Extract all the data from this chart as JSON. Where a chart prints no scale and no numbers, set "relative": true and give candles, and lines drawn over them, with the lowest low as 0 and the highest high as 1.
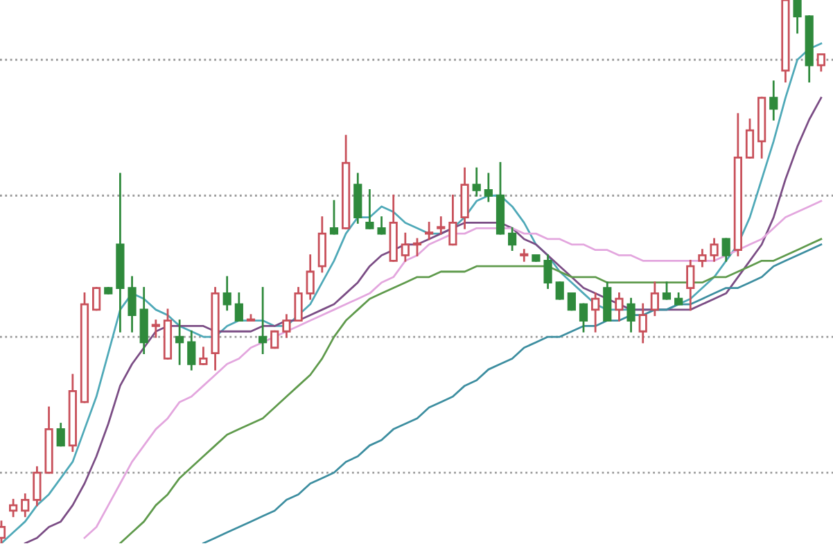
{
  "chart_data": {
    "type": "candlestick",
    "relative": true,
    "categories": [
      null,
      null,
      null,
      null,
      null,
      null,
      null,
      null,
      null,
      null,
      null,
      null,
      null,
      null,
      null,
      null,
      null,
      null,
      null,
      null,
      null,
      null,
      null,
      null,
      null,
      null,
      null,
      null,
      null,
      null,
      null,
      null,
      null,
      null,
      null,
      null,
      null,
      null,
      null,
      null,
      null,
      null,
      null,
      null,
      null,
      null,
      null,
      null,
      null,
      null,
      null,
      null,
      null,
      null,
      null,
      null,
      null,
      null,
      null,
      null,
      null,
      null,
      null,
      null,
      null,
      null,
      null,
      null,
      null,
      null
    ],
    "ohlc": [
      [
        0.01,
        0.04,
        0,
        0.03
      ],
      [
        0.06,
        0.08,
        0.05,
        0.07
      ],
      [
        0.06,
        0.09,
        0.05,
        0.08
      ],
      [
        0.08,
        0.14,
        0.07,
        0.13
      ],
      [
        0.13,
        0.25,
        0.13,
        0.21
      ],
      [
        0.21,
        0.22,
        0.18,
        0.18
      ],
      [
        0.18,
        0.31,
        0.17,
        0.28
      ],
      [
        0.26,
        0.46,
        0.26,
        0.44
      ],
      [
        0.43,
        0.47,
        0.43,
        0.47
      ],
      [
        0.47,
        0.47,
        0.46,
        0.46
      ],
      [
        0.55,
        0.68,
        0.39,
        0.47
      ],
      [
        0.47,
        0.49,
        0.39,
        0.42
      ],
      [
        0.43,
        0.47,
        0.35,
        0.37
      ],
      [
        0.4,
        0.41,
        0.38,
        0.4
      ],
      [
        0.34,
        0.43,
        0.34,
        0.41
      ],
      [
        0.38,
        0.41,
        0.33,
        0.37
      ],
      [
        0.37,
        0.39,
        0.32,
        0.33
      ],
      [
        0.33,
        0.36,
        0.33,
        0.34
      ],
      [
        0.35,
        0.47,
        0.32,
        0.46
      ],
      [
        0.46,
        0.49,
        0.43,
        0.44
      ],
      [
        0.44,
        0.46,
        0.41,
        0.41
      ],
      [
        0.41,
        0.42,
        0.41,
        0.41
      ],
      [
        0.38,
        0.47,
        0.35,
        0.37
      ],
      [
        0.36,
        0.39,
        0.36,
        0.39
      ],
      [
        0.39,
        0.42,
        0.38,
        0.41
      ],
      [
        0.41,
        0.47,
        0.41,
        0.46
      ],
      [
        0.46,
        0.53,
        0.45,
        0.5
      ],
      [
        0.51,
        0.6,
        0.5,
        0.57
      ],
      [
        0.58,
        0.63,
        0.57,
        0.57
      ],
      [
        0.58,
        0.75,
        0.58,
        0.7
      ],
      [
        0.66,
        0.68,
        0.59,
        0.6
      ],
      [
        0.59,
        0.65,
        0.58,
        0.58
      ],
      [
        0.58,
        0.6,
        0.57,
        0.57
      ],
      [
        0.52,
        0.64,
        0.52,
        0.59
      ],
      [
        0.53,
        0.57,
        0.52,
        0.55
      ],
      [
        0.55,
        0.56,
        0.53,
        0.55
      ],
      [
        0.57,
        0.59,
        0.56,
        0.57
      ],
      [
        0.58,
        0.6,
        0.57,
        0.58
      ],
      [
        0.55,
        0.64,
        0.55,
        0.59
      ],
      [
        0.6,
        0.69,
        0.58,
        0.66
      ],
      [
        0.66,
        0.69,
        0.64,
        0.65
      ],
      [
        0.65,
        0.68,
        0.63,
        0.64
      ],
      [
        0.64,
        0.7,
        0.57,
        0.57
      ],
      [
        0.57,
        0.58,
        0.54,
        0.55
      ],
      [
        0.53,
        0.54,
        0.52,
        0.53
      ],
      [
        0.53,
        0.53,
        0.52,
        0.52
      ],
      [
        0.52,
        0.53,
        0.47,
        0.48
      ],
      [
        0.48,
        0.48,
        0.45,
        0.45
      ],
      [
        0.46,
        0.46,
        0.43,
        0.43
      ],
      [
        0.44,
        0.44,
        0.39,
        0.41
      ],
      [
        0.43,
        0.46,
        0.39,
        0.45
      ],
      [
        0.47,
        0.48,
        0.41,
        0.41
      ],
      [
        0.43,
        0.46,
        0.41,
        0.45
      ],
      [
        0.44,
        0.45,
        0.39,
        0.41
      ],
      [
        0.39,
        0.44,
        0.37,
        0.42
      ],
      [
        0.43,
        0.48,
        0.42,
        0.46
      ],
      [
        0.46,
        0.48,
        0.45,
        0.45
      ],
      [
        0.45,
        0.46,
        0.44,
        0.44
      ],
      [
        0.47,
        0.52,
        0.43,
        0.51
      ],
      [
        0.52,
        0.54,
        0.51,
        0.53
      ],
      [
        0.53,
        0.56,
        0.52,
        0.55
      ],
      [
        0.56,
        0.56,
        0.52,
        0.53
      ],
      [
        0.54,
        0.79,
        0.53,
        0.71
      ],
      [
        0.71,
        0.78,
        0.71,
        0.76
      ],
      [
        0.74,
        0.82,
        0.71,
        0.82
      ],
      [
        0.82,
        0.85,
        0.78,
        0.8
      ],
      [
        0.87,
        1,
        0.85,
        1
      ],
      [
        1,
        1,
        0.94,
        0.97
      ],
      [
        0.97,
        0.97,
        0.85,
        0.88
      ],
      [
        0.88,
        0.9,
        0.87,
        0.9
      ]
    ],
    "series": [
      {
        "type": "line",
        "color": "#4fa9b8",
        "values": [
          0,
          0.02,
          0.04,
          0.07,
          0.09,
          0.12,
          0.15,
          0.21,
          0.27,
          0.35,
          0.43,
          0.46,
          0.45,
          0.43,
          0.42,
          0.4,
          0.39,
          0.38,
          0.38,
          0.4,
          0.41,
          0.41,
          0.41,
          0.4,
          0.4,
          0.42,
          0.44,
          0.48,
          0.52,
          0.57,
          0.6,
          0.6,
          0.62,
          0.61,
          0.59,
          0.58,
          0.57,
          0.57,
          0.58,
          0.6,
          0.63,
          0.64,
          0.64,
          0.62,
          0.59,
          0.55,
          0.53,
          0.5,
          0.48,
          0.46,
          0.44,
          0.43,
          0.43,
          0.43,
          0.43,
          0.43,
          0.43,
          0.44,
          0.45,
          0.47,
          0.49,
          0.52,
          0.55,
          0.6,
          0.67,
          0.74,
          0.82,
          0.89,
          0.91,
          0.92
        ]
      },
      {
        "type": "line",
        "color": "#7b4d85",
        "values": [
          null,
          null,
          0,
          0.01,
          0.03,
          0.04,
          0.07,
          0.11,
          0.16,
          0.22,
          0.29,
          0.33,
          0.36,
          0.39,
          0.4,
          0.4,
          0.4,
          0.4,
          0.39,
          0.39,
          0.39,
          0.39,
          0.4,
          0.4,
          0.41,
          0.41,
          0.42,
          0.43,
          0.44,
          0.46,
          0.48,
          0.51,
          0.53,
          0.54,
          0.55,
          0.55,
          0.56,
          0.57,
          0.58,
          0.59,
          0.59,
          0.59,
          0.59,
          0.58,
          0.56,
          0.55,
          0.53,
          0.51,
          0.49,
          0.47,
          0.46,
          0.45,
          0.44,
          0.43,
          0.43,
          0.43,
          0.43,
          0.43,
          0.43,
          0.44,
          0.45,
          0.46,
          0.49,
          0.52,
          0.55,
          0.6,
          0.67,
          0.73,
          0.78,
          0.82
        ]
      },
      {
        "type": "line",
        "color": "#e3a6de",
        "values": [
          null,
          null,
          null,
          null,
          null,
          null,
          null,
          0.01,
          0.03,
          0.07,
          0.11,
          0.15,
          0.18,
          0.21,
          0.23,
          0.26,
          0.27,
          0.29,
          0.31,
          0.33,
          0.34,
          0.36,
          0.37,
          0.38,
          0.39,
          0.4,
          0.41,
          0.42,
          0.43,
          0.44,
          0.45,
          0.46,
          0.48,
          0.49,
          0.52,
          0.53,
          0.55,
          0.56,
          0.57,
          0.57,
          0.58,
          0.58,
          0.58,
          0.58,
          0.57,
          0.57,
          0.56,
          0.56,
          0.55,
          0.55,
          0.54,
          0.54,
          0.53,
          0.53,
          0.52,
          0.52,
          0.52,
          0.52,
          0.52,
          0.52,
          0.52,
          0.53,
          0.54,
          0.55,
          0.56,
          0.58,
          0.6,
          0.61,
          0.62,
          0.63
        ]
      },
      {
        "type": "line",
        "color": "#5f9a4c",
        "values": [
          null,
          null,
          null,
          null,
          null,
          null,
          null,
          null,
          null,
          null,
          0,
          0.02,
          0.04,
          0.07,
          0.09,
          0.12,
          0.14,
          0.16,
          0.18,
          0.2,
          0.21,
          0.22,
          0.23,
          0.25,
          0.27,
          0.29,
          0.31,
          0.34,
          0.38,
          0.41,
          0.43,
          0.45,
          0.46,
          0.47,
          0.48,
          0.49,
          0.49,
          0.5,
          0.5,
          0.5,
          0.51,
          0.51,
          0.51,
          0.51,
          0.51,
          0.51,
          0.51,
          0.5,
          0.49,
          0.49,
          0.49,
          0.48,
          0.48,
          0.48,
          0.48,
          0.48,
          0.48,
          0.48,
          0.48,
          0.48,
          0.49,
          0.49,
          0.5,
          0.51,
          0.52,
          0.52,
          0.53,
          0.54,
          0.55,
          0.56
        ]
      },
      {
        "type": "line",
        "color": "#3d8ea0",
        "values": [
          null,
          null,
          null,
          null,
          null,
          null,
          null,
          null,
          null,
          null,
          null,
          null,
          null,
          null,
          null,
          null,
          null,
          0,
          0.01,
          0.02,
          0.03,
          0.04,
          0.05,
          0.06,
          0.08,
          0.09,
          0.11,
          0.12,
          0.13,
          0.15,
          0.16,
          0.18,
          0.19,
          0.21,
          0.22,
          0.23,
          0.25,
          0.26,
          0.27,
          0.29,
          0.3,
          0.32,
          0.33,
          0.34,
          0.36,
          0.37,
          0.38,
          0.38,
          0.39,
          0.4,
          0.4,
          0.41,
          0.41,
          0.42,
          0.42,
          0.43,
          0.43,
          0.44,
          0.44,
          0.45,
          0.46,
          0.47,
          0.47,
          0.48,
          0.49,
          0.51,
          0.52,
          0.53,
          0.54,
          0.55
        ]
      }
    ],
    "ref_lines": [
      {
        "axis": "y",
        "value": 0.89,
        "color": "#9a9a9a",
        "line_style": "dotted"
      },
      {
        "axis": "y",
        "value": 0.64,
        "color": "#9a9a9a",
        "line_style": "dotted"
      },
      {
        "axis": "y",
        "value": 0.38,
        "color": "#9a9a9a",
        "line_style": "dotted"
      },
      {
        "axis": "y",
        "value": 0.13,
        "color": "#9a9a9a",
        "line_style": "dotted"
      }
    ]
  }
}
